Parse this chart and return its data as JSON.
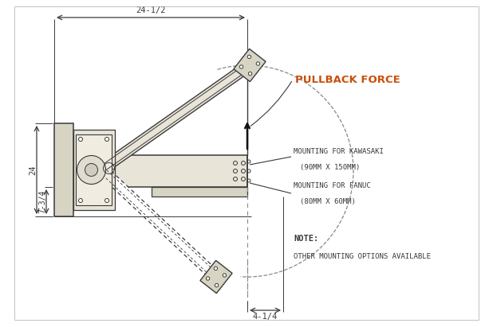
{
  "bg_color": "#ffffff",
  "line_color": "#3a3a3a",
  "dim_color": "#3a3a3a",
  "pullback_color": "#c8500a",
  "fill_light": "#e8e4d8",
  "fill_mid": "#d8d4c4",
  "fill_dark": "#c8c4b4",
  "pullback_label": "PULLBACK FORCE",
  "kawasaki_label_1": "MOUNTING FOR KAWASAKI",
  "kawasaki_label_2": "(90MM X 150MM)",
  "fanuc_label_1": "MOUNTING FOR FANUC",
  "fanuc_label_2": "(80MM X 60MM)",
  "note_label_1": "NOTE:",
  "note_label_2": "OTHER MOUNTING OPTIONS AVAILABLE",
  "dim_24half": "24-1/2",
  "dim_24": "24",
  "dim_7_3_4": "7-3/4",
  "dim_4_1_4": "4-1/4"
}
